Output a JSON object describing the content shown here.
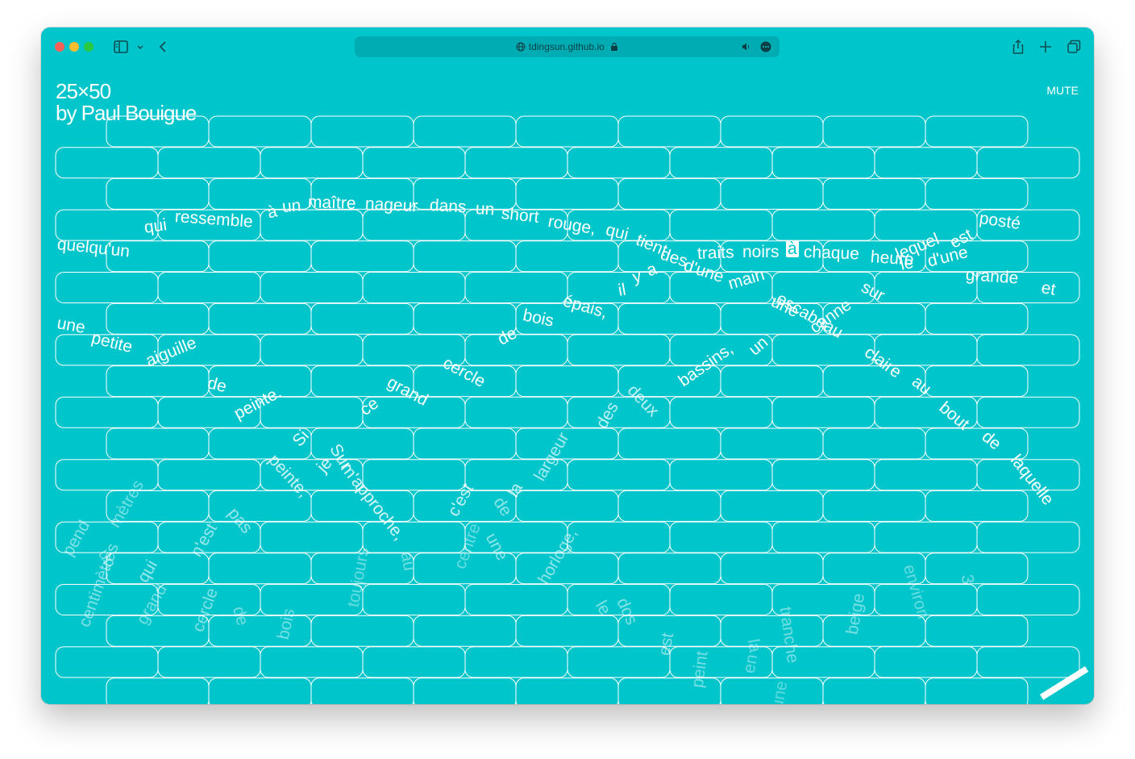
{
  "browser": {
    "url": "tdingsun.github.io",
    "icons": [
      "sidebar-icon",
      "chevron-down-icon",
      "back-icon",
      "globe-icon",
      "lock-icon",
      "speaker-icon",
      "more-icon",
      "share-icon",
      "new-tab-icon",
      "tabs-overview-icon"
    ]
  },
  "page": {
    "title_line1": "25×50",
    "title_line2": "by Paul Bouigue",
    "mute_label": "MUTE",
    "colors": {
      "background": "#00c6cc",
      "foreground": "#ffffff"
    }
  },
  "words": [
    "quelqu'un",
    "qui",
    "ressemble",
    "à",
    "un",
    "maître",
    "nageur",
    "dans",
    "un",
    "short",
    "rouge,",
    "qui",
    "tient",
    "des",
    "traits",
    "noirs",
    "à",
    "chaque",
    "heure",
    "lequel",
    "est",
    "posté",
    "il",
    "y",
    "a",
    "d'une",
    "main",
    "sur",
    "le",
    "d'une",
    "grande",
    "et",
    "épais,",
    "escabeau",
    "une",
    "canne",
    "une",
    "petite",
    "aiguille",
    "de",
    "peinte.",
    "bois",
    "de",
    "cercle",
    "grand",
    "ce",
    "bassins,",
    "un",
    "claire",
    "au",
    "bout",
    "de",
    "laquelle",
    "deux",
    "des",
    "Si",
    "Sur",
    "peinte,",
    "je",
    "m'approche,",
    "largeur",
    "la",
    "de",
    "c'est",
    "pend",
    "un",
    "mètres",
    "qui",
    "n'est",
    "pas",
    "centimètres",
    "grand",
    "cercle",
    "de",
    "bois",
    "toujours",
    "au",
    "centre",
    "une",
    "horloge,",
    "le",
    "dos",
    "est",
    "peint",
    "la",
    "tranche",
    "beige",
    "environ",
    "3",
    "en",
    "aune"
  ]
}
